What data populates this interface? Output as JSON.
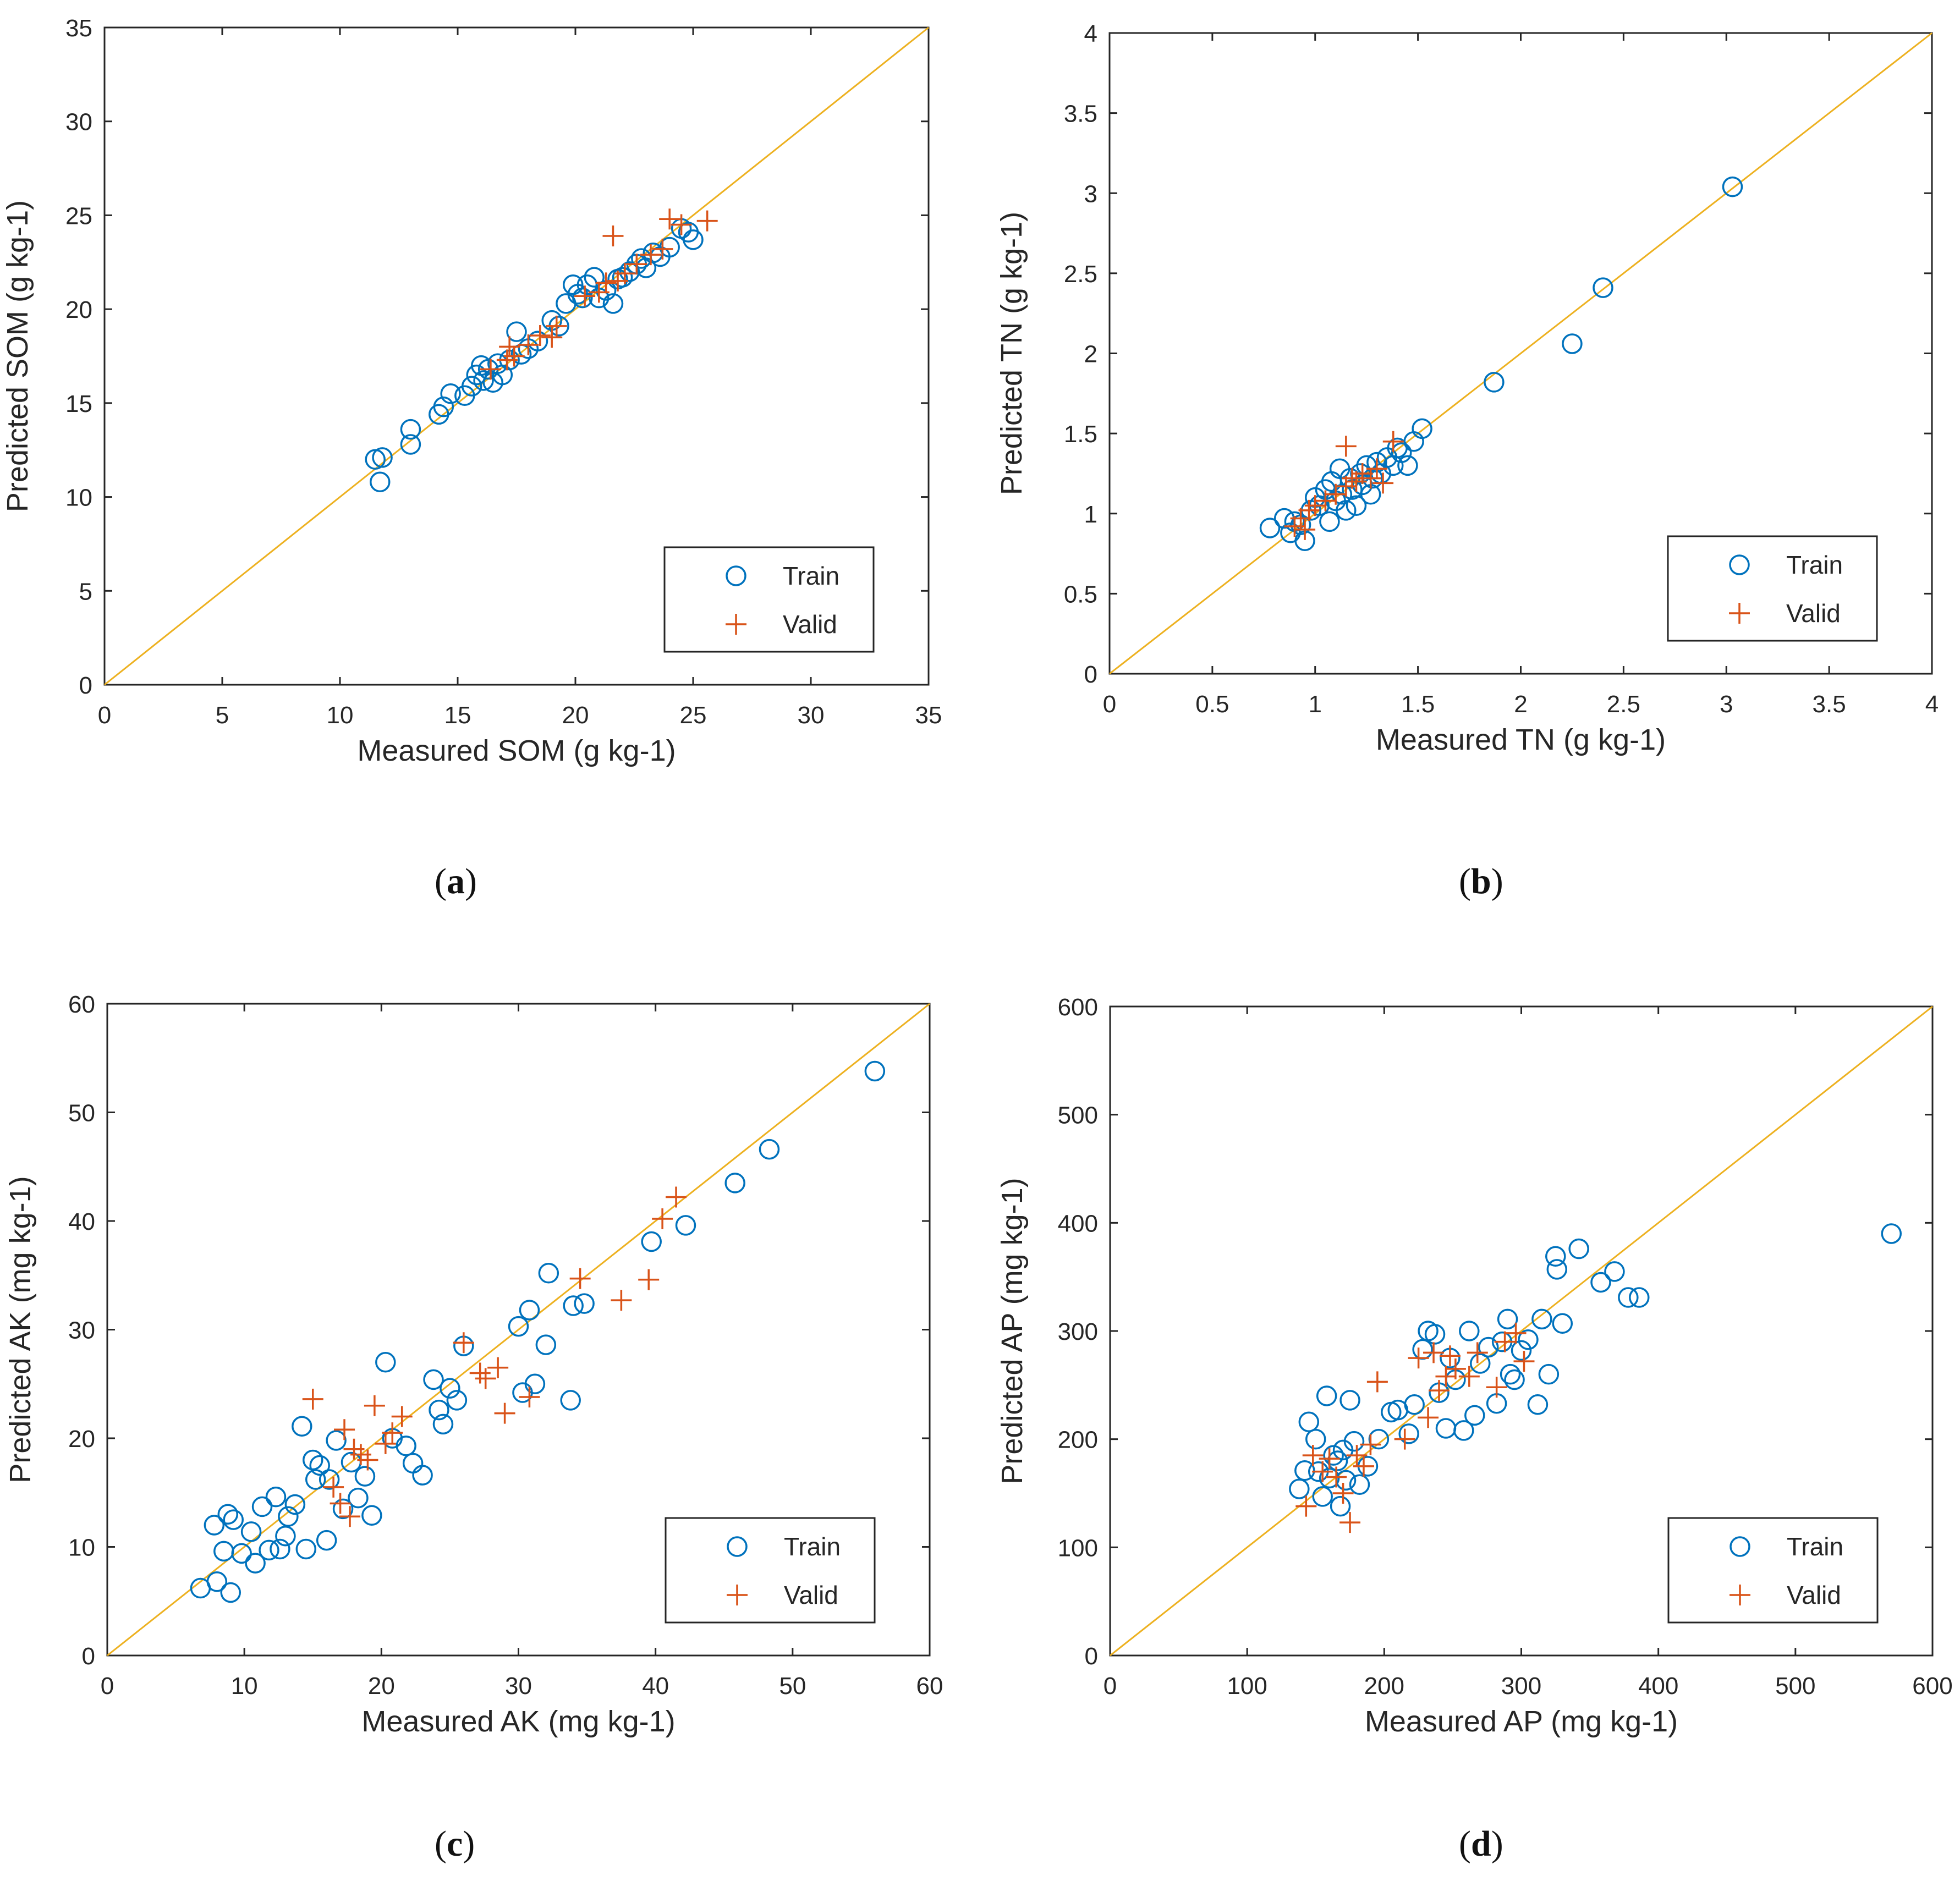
{
  "chart_data": [
    {
      "type": "scatter",
      "panel_label": "a",
      "xlabel": "Measured SOM (g kg-1)",
      "ylabel": "Predicted SOM (g kg-1)",
      "xlim": [
        0,
        35
      ],
      "ylim": [
        0,
        35
      ],
      "xticks": [
        0,
        5,
        10,
        15,
        20,
        25,
        30,
        35
      ],
      "yticks": [
        0,
        5,
        10,
        15,
        20,
        25,
        30,
        35
      ],
      "tick_labels_x": [
        "0",
        "5",
        "10",
        "15",
        "20",
        "25",
        "30",
        "35"
      ],
      "tick_labels_y": [
        "0",
        "5",
        "10",
        "15",
        "20",
        "25",
        "30",
        "35"
      ],
      "legend_position": "lower-right",
      "reference_line": "1:1",
      "series": [
        {
          "name": "Train",
          "marker": "circle",
          "color": "#0072BD",
          "x": [
            11.5,
            11.8,
            11.7,
            13,
            13,
            14.2,
            14.4,
            14.7,
            15.3,
            15.6,
            15.8,
            16,
            16.1,
            16.3,
            16.5,
            16.7,
            16.9,
            17.2,
            17.5,
            17.7,
            18,
            18.4,
            19,
            19.3,
            19.6,
            19.9,
            20.1,
            20.3,
            20.5,
            20.8,
            21,
            21.3,
            21.6,
            21.8,
            22,
            22.3,
            22.6,
            22.8,
            23,
            23.3,
            23.6,
            24,
            24.5,
            24.8,
            25
          ],
          "y": [
            12,
            12.1,
            10.8,
            12.8,
            13.6,
            14.4,
            14.8,
            15.5,
            15.4,
            15.9,
            16.5,
            17,
            16.2,
            16.8,
            16.1,
            17.1,
            16.5,
            17.3,
            18.8,
            17.6,
            17.9,
            18.3,
            19.4,
            19.1,
            20.3,
            21.3,
            20.8,
            20.6,
            21.3,
            21.7,
            20.6,
            21,
            20.3,
            21.6,
            21.7,
            22,
            22.4,
            22.7,
            22.2,
            23,
            22.8,
            23.3,
            24.3,
            24.1,
            23.7
          ]
        },
        {
          "name": "Valid",
          "marker": "plus",
          "color": "#D95319",
          "x": [
            16.4,
            17.1,
            17.4,
            18,
            18.5,
            19,
            19.2,
            20.4,
            21,
            21.3,
            21.6,
            21.8,
            22.1,
            22.6,
            23.2,
            23.7,
            24,
            24.5,
            25.6,
            17.2
          ],
          "y": [
            16.8,
            17.3,
            17.5,
            18.1,
            18.6,
            18.5,
            19.1,
            20.7,
            20.9,
            21.4,
            23.9,
            21.5,
            21.9,
            22.4,
            22.9,
            23.2,
            24.8,
            24.5,
            24.7,
            18
          ]
        }
      ]
    },
    {
      "type": "scatter",
      "panel_label": "b",
      "xlabel": "Measured TN (g kg-1)",
      "ylabel": "Predicted TN (g kg-1)",
      "xlim": [
        0,
        4
      ],
      "ylim": [
        0,
        4
      ],
      "xticks": [
        0,
        0.5,
        1,
        1.5,
        2,
        2.5,
        3,
        3.5,
        4
      ],
      "yticks": [
        0,
        0.5,
        1,
        1.5,
        2,
        2.5,
        3,
        3.5,
        4
      ],
      "tick_labels_x": [
        "0",
        "0.5",
        "1",
        "1.5",
        "2",
        "2.5",
        "3",
        "3.5",
        "4"
      ],
      "tick_labels_y": [
        "0",
        "0.5",
        "1",
        "1.5",
        "2",
        "2.5",
        "3",
        "3.5",
        "4"
      ],
      "legend_position": "lower-right",
      "reference_line": "1:1",
      "series": [
        {
          "name": "Train",
          "marker": "circle",
          "color": "#0072BD",
          "x": [
            0.78,
            0.85,
            0.88,
            0.9,
            0.93,
            0.95,
            0.98,
            1,
            1.02,
            1.05,
            1.07,
            1.08,
            1.1,
            1.12,
            1.13,
            1.15,
            1.17,
            1.18,
            1.2,
            1.22,
            1.23,
            1.25,
            1.27,
            1.28,
            1.3,
            1.32,
            1.35,
            1.38,
            1.4,
            1.42,
            1.45,
            1.48,
            1.52,
            1.87,
            2.25,
            2.4,
            3.03
          ],
          "y": [
            0.91,
            0.97,
            0.88,
            0.95,
            0.93,
            0.83,
            1.02,
            1.1,
            1.05,
            1.15,
            0.95,
            1.2,
            1.08,
            1.28,
            1.12,
            1.02,
            1.22,
            1.15,
            1.05,
            1.25,
            1.18,
            1.3,
            1.12,
            1.22,
            1.32,
            1.25,
            1.35,
            1.3,
            1.41,
            1.38,
            1.3,
            1.45,
            1.53,
            1.82,
            2.06,
            2.41,
            3.04
          ]
        },
        {
          "name": "Valid",
          "marker": "plus",
          "color": "#D95319",
          "x": [
            0.9,
            0.93,
            0.95,
            0.97,
            1,
            1.05,
            1.1,
            1.15,
            1.18,
            1.2,
            1.23,
            1.27,
            1.3,
            1.33,
            1.38,
            1.15
          ],
          "y": [
            0.92,
            0.97,
            0.9,
            1.02,
            1.05,
            1.08,
            1.12,
            1.17,
            1.22,
            1.2,
            1.25,
            1.22,
            1.28,
            1.19,
            1.45,
            1.42
          ]
        }
      ]
    },
    {
      "type": "scatter",
      "panel_label": "c",
      "xlabel": "Measured AK (mg kg-1)",
      "ylabel": "Predicted AK (mg kg-1)",
      "xlim": [
        0,
        60
      ],
      "ylim": [
        0,
        60
      ],
      "xticks": [
        0,
        10,
        20,
        30,
        40,
        50,
        60
      ],
      "yticks": [
        0,
        10,
        20,
        30,
        40,
        50,
        60
      ],
      "tick_labels_x": [
        "0",
        "10",
        "20",
        "30",
        "40",
        "50",
        "60"
      ],
      "tick_labels_y": [
        "0",
        "10",
        "20",
        "30",
        "40",
        "50",
        "60"
      ],
      "legend_position": "lower-right",
      "reference_line": "1:1",
      "series": [
        {
          "name": "Train",
          "marker": "circle",
          "color": "#0072BD",
          "x": [
            6.8,
            7.8,
            8,
            8.5,
            8.8,
            9,
            9.2,
            9.8,
            10.5,
            10.8,
            11.3,
            11.8,
            12.3,
            12.6,
            13,
            13.2,
            13.7,
            14.2,
            14.5,
            15,
            15.2,
            15.5,
            16,
            16.2,
            16.7,
            17.2,
            17.8,
            18.3,
            18.8,
            19.3,
            20.3,
            20.8,
            21.8,
            22.3,
            23,
            23.8,
            24.2,
            24.5,
            25,
            25.5,
            26,
            30,
            30.3,
            30.8,
            31.2,
            32,
            32.2,
            33.8,
            34,
            34.8,
            39.7,
            42.2,
            45.8,
            48.3,
            56
          ],
          "y": [
            6.2,
            12,
            6.8,
            9.6,
            13,
            5.8,
            12.5,
            9.4,
            11.4,
            8.5,
            13.7,
            9.7,
            14.6,
            9.8,
            11,
            12.8,
            13.9,
            21.1,
            9.8,
            18,
            16.2,
            17.5,
            10.6,
            16.2,
            19.8,
            13.5,
            17.8,
            14.5,
            16.5,
            12.9,
            27,
            20,
            19.3,
            17.7,
            16.6,
            25.4,
            22.6,
            21.3,
            24.6,
            23.5,
            28.5,
            30.3,
            24.2,
            31.8,
            25,
            28.6,
            35.2,
            23.5,
            32.2,
            32.4,
            38.1,
            39.6,
            43.5,
            46.6,
            53.8
          ]
        },
        {
          "name": "Valid",
          "marker": "plus",
          "color": "#D95319",
          "x": [
            15,
            16.5,
            17,
            17.3,
            17.7,
            18,
            18.5,
            19,
            19.5,
            20.3,
            20.8,
            21.5,
            26,
            27.2,
            27.6,
            28.5,
            29,
            30.8,
            34.5,
            37.5,
            39.5,
            40.5,
            41.5
          ],
          "y": [
            23.6,
            15.5,
            14,
            20.8,
            12.8,
            19,
            18.5,
            18,
            23,
            19.5,
            20.5,
            22,
            28.8,
            26,
            25.5,
            26.5,
            22.3,
            23.8,
            34.7,
            32.7,
            34.6,
            40.2,
            42.2
          ]
        }
      ]
    },
    {
      "type": "scatter",
      "panel_label": "d",
      "xlabel": "Measured AP (mg kg-1)",
      "ylabel": "Predicted AP (mg kg-1)",
      "xlim": [
        0,
        600
      ],
      "ylim": [
        0,
        600
      ],
      "xticks": [
        0,
        100,
        200,
        300,
        400,
        500,
        600
      ],
      "yticks": [
        0,
        100,
        200,
        300,
        400,
        500,
        600
      ],
      "tick_labels_x": [
        "0",
        "100",
        "200",
        "300",
        "400",
        "500",
        "600"
      ],
      "tick_labels_y": [
        "0",
        "100",
        "200",
        "300",
        "400",
        "500",
        "600"
      ],
      "legend_position": "lower-right",
      "reference_line": "1:1",
      "series": [
        {
          "name": "Train",
          "marker": "circle",
          "color": "#0072BD",
          "x": [
            138,
            142,
            145,
            150,
            152,
            155,
            158,
            160,
            163,
            166,
            168,
            170,
            172,
            175,
            178,
            182,
            188,
            196,
            205,
            210,
            218,
            222,
            228,
            232,
            237,
            240,
            245,
            248,
            252,
            258,
            262,
            266,
            270,
            276,
            282,
            286,
            290,
            292,
            295,
            300,
            305,
            312,
            315,
            320,
            325,
            326,
            330,
            342,
            358,
            368,
            378,
            386,
            570
          ],
          "y": [
            154,
            171,
            216,
            200,
            170,
            147,
            240,
            164,
            185,
            180,
            138,
            190,
            162,
            236,
            198,
            158,
            175,
            200,
            225,
            227,
            205,
            232,
            283,
            300,
            297,
            243,
            210,
            275,
            255,
            208,
            300,
            222,
            270,
            285,
            233,
            290,
            311,
            260,
            255,
            282,
            292,
            232,
            311,
            260,
            369,
            357,
            307,
            376,
            345,
            355,
            331,
            331,
            390
          ]
        },
        {
          "name": "Valid",
          "marker": "plus",
          "color": "#D95319",
          "x": [
            143,
            148,
            155,
            160,
            165,
            170,
            175,
            180,
            185,
            190,
            195,
            215,
            225,
            232,
            236,
            240,
            245,
            248,
            252,
            262,
            268,
            282,
            288,
            296,
            302
          ],
          "y": [
            138,
            185,
            170,
            182,
            165,
            150,
            123,
            185,
            175,
            195,
            253,
            200,
            275,
            220,
            280,
            245,
            258,
            277,
            265,
            258,
            280,
            248,
            290,
            298,
            272
          ]
        }
      ]
    }
  ]
}
